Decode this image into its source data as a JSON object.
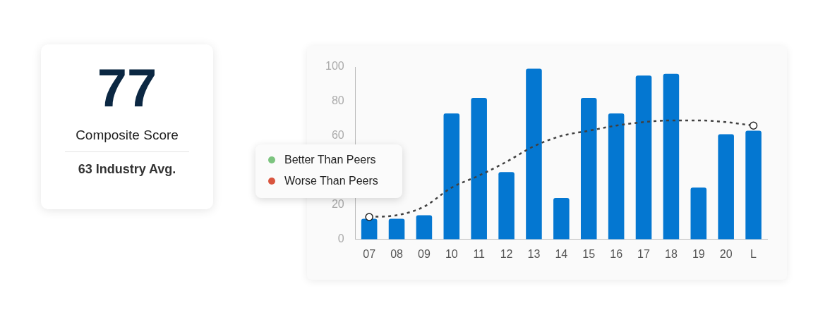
{
  "chart_data": [
    {
      "type": "other",
      "title": "Composite Score",
      "annotations": [
        "77",
        "63 Industry Avg."
      ]
    },
    {
      "type": "bar",
      "categories": [
        "07",
        "08",
        "09",
        "10",
        "11",
        "12",
        "13",
        "14",
        "15",
        "16",
        "17",
        "18",
        "19",
        "20",
        "L"
      ],
      "series": [
        {
          "type": "bar",
          "color": "#0477d1",
          "values": [
            12,
            12,
            14,
            73,
            82,
            39,
            99,
            24,
            82,
            73,
            95,
            96,
            30,
            61,
            63
          ]
        },
        {
          "type": "line",
          "color": "#404040",
          "line_style": "dashed",
          "values": [
            13,
            14,
            19,
            30,
            37,
            45,
            54,
            60,
            63,
            66,
            68,
            69,
            69,
            68,
            66
          ]
        },
        {
          "type": "scatter",
          "color": "#222222",
          "marker": "circle",
          "values": [
            13,
            null,
            null,
            null,
            null,
            null,
            null,
            null,
            null,
            null,
            null,
            null,
            null,
            null,
            66
          ]
        },
        {
          "name": "Better Than Peers",
          "color": "#7cc47f",
          "values": [
            null,
            null,
            null,
            null,
            null,
            null,
            null,
            null,
            null,
            null,
            null,
            null,
            null,
            null,
            null
          ]
        },
        {
          "name": "Worse Than Peers",
          "color": "#d9553f",
          "values": [
            null,
            null,
            null,
            null,
            null,
            null,
            null,
            null,
            null,
            null,
            null,
            null,
            null,
            null,
            null
          ]
        }
      ],
      "ylim": [
        0,
        100
      ],
      "yticks": [
        0,
        20,
        60,
        80,
        100
      ],
      "grid": false,
      "legend": "left"
    }
  ]
}
